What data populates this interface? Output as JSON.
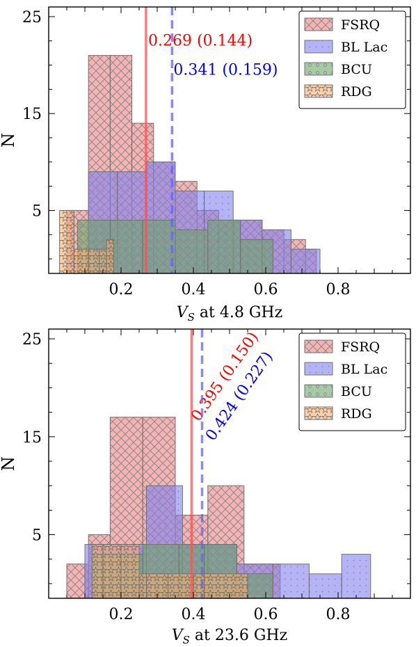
{
  "colors": {
    "FSRQ": "#f08080",
    "BL Lac": "#8080f0",
    "BCU": "#6aa56a",
    "RDG": "#f8b070",
    "fsrq_line": "#ff5050",
    "bllac_line": "#6060ff",
    "fsrq_text": "#ff0000",
    "bllac_text": "#0000ff"
  },
  "chart_data": [
    {
      "type": "bar",
      "subtype": "histogram",
      "xlabel_var": "V",
      "xlabel_sub": "S",
      "xlabel_rest": " at 4.8 GHz",
      "ylabel": "N",
      "xlim": [
        0.0,
        1.0
      ],
      "ylim": [
        -1.5,
        26
      ],
      "xticks": [
        0.2,
        0.4,
        0.6,
        0.8
      ],
      "xtick_labels": [
        "0.2",
        "0.4",
        "0.6",
        "0.8"
      ],
      "yticks": [
        5,
        15,
        25
      ],
      "ytick_labels": [
        "5",
        "15",
        "25"
      ],
      "legend": [
        "FSRQ",
        "BL Lac",
        "BCU",
        "RDG"
      ],
      "legend_position": "top-right",
      "series": [
        {
          "name": "FSRQ",
          "pattern": "cross",
          "edges": [
            0.05,
            0.11,
            0.17,
            0.23,
            0.29,
            0.35,
            0.41,
            0.47,
            0.53,
            0.59,
            0.65,
            0.71,
            0.74
          ],
          "counts": [
            5,
            21,
            21,
            14,
            10,
            8,
            5,
            4,
            4,
            3,
            2,
            1
          ]
        },
        {
          "name": "BL Lac",
          "pattern": "dots",
          "edges": [
            0.11,
            0.19,
            0.27,
            0.35,
            0.43,
            0.51,
            0.59,
            0.67,
            0.75
          ],
          "counts": [
            9,
            9,
            10,
            7,
            7,
            4,
            3,
            1
          ]
        },
        {
          "name": "BCU",
          "pattern": "circles",
          "edges": [
            0.08,
            0.17,
            0.26,
            0.35,
            0.44,
            0.53,
            0.62
          ],
          "counts": [
            4,
            4,
            4,
            3,
            4,
            2
          ]
        },
        {
          "name": "RDG",
          "pattern": "stars",
          "edges": [
            0.03,
            0.07,
            0.11,
            0.14,
            0.16,
            0.18
          ],
          "counts": [
            5,
            1,
            1,
            1,
            2
          ]
        }
      ],
      "vlines": [
        {
          "series": "FSRQ",
          "x": 0.269,
          "style": "solid",
          "label": "0.269 (0.144)",
          "label_x": 0.275,
          "label_y": 22.0,
          "rotation": 0
        },
        {
          "series": "BL Lac",
          "x": 0.341,
          "style": "dashed",
          "label": "0.341 (0.159)",
          "label_x": 0.345,
          "label_y": 19.0,
          "rotation": 0
        }
      ]
    },
    {
      "type": "bar",
      "subtype": "histogram",
      "xlabel_var": "V",
      "xlabel_sub": "S",
      "xlabel_rest": " at 23.6 GHz",
      "ylabel": "N",
      "xlim": [
        0.0,
        1.0
      ],
      "ylim": [
        -1.5,
        26
      ],
      "xticks": [
        0.2,
        0.4,
        0.6,
        0.8
      ],
      "xtick_labels": [
        "0.2",
        "0.4",
        "0.6",
        "0.8"
      ],
      "yticks": [
        5,
        15,
        25
      ],
      "ytick_labels": [
        "5",
        "15",
        "25"
      ],
      "legend": [
        "FSRQ",
        "BL Lac",
        "BCU",
        "RDG"
      ],
      "legend_position": "top-right",
      "series": [
        {
          "name": "FSRQ",
          "pattern": "cross",
          "edges": [
            0.05,
            0.11,
            0.17,
            0.26,
            0.35,
            0.44,
            0.54,
            0.64
          ],
          "counts": [
            2,
            5,
            17,
            17,
            7,
            10,
            2
          ]
        },
        {
          "name": "BL Lac",
          "pattern": "dots",
          "edges": [
            0.1,
            0.27,
            0.37,
            0.44,
            0.52,
            0.62,
            0.72,
            0.81,
            0.89
          ],
          "counts": [
            4,
            10,
            4,
            4,
            2,
            2,
            1,
            3
          ]
        },
        {
          "name": "BCU",
          "pattern": "circles",
          "edges": [
            0.12,
            0.26,
            0.36,
            0.43,
            0.52,
            0.62
          ],
          "counts": [
            3,
            4,
            4,
            4,
            1
          ]
        },
        {
          "name": "RDG",
          "pattern": "stars",
          "edges": [
            0.12,
            0.15,
            0.2,
            0.25,
            0.27,
            0.33,
            0.4,
            0.43,
            0.55
          ],
          "counts": [
            4,
            4,
            4,
            1,
            1,
            1,
            1,
            1
          ]
        }
      ],
      "vlines": [
        {
          "series": "FSRQ",
          "x": 0.395,
          "style": "solid",
          "label": "0.395 (0.150)",
          "label_x": 0.415,
          "label_y": 16.5,
          "rotation": -55
        },
        {
          "series": "BL Lac",
          "x": 0.424,
          "style": "dashed",
          "label": "0.424 (0.227)",
          "label_x": 0.455,
          "label_y": 14.5,
          "rotation": -55
        }
      ]
    }
  ]
}
